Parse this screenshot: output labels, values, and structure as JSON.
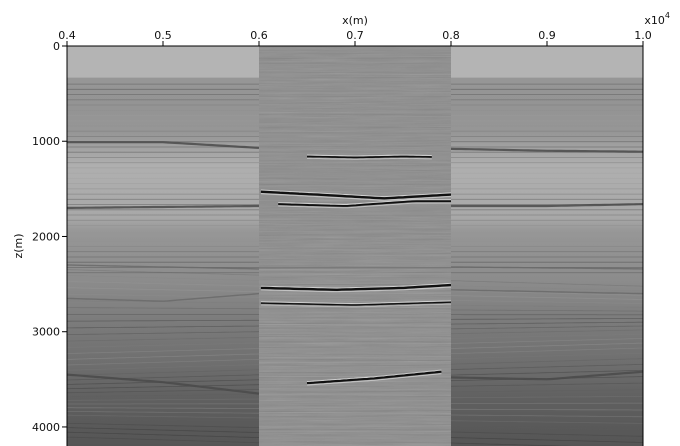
{
  "chart_data": {
    "type": "heatmap",
    "title": "",
    "xlabel": "x(m)",
    "ylabel": "z(m)",
    "x_multiplier": "x10",
    "x_multiplier_exp": "4",
    "xlim": [
      0.4,
      1.0
    ],
    "ylim": [
      0,
      4200
    ],
    "y_direction": "down",
    "x_ticks": [
      {
        "value": 0.4,
        "label": "0.4"
      },
      {
        "value": 0.5,
        "label": "0.5"
      },
      {
        "value": 0.6,
        "label": "0.6"
      },
      {
        "value": 0.7,
        "label": "0.7"
      },
      {
        "value": 0.8,
        "label": "0.8"
      },
      {
        "value": 0.9,
        "label": "0.9"
      },
      {
        "value": 1.0,
        "label": "1.0"
      }
    ],
    "y_ticks": [
      {
        "value": 0,
        "label": "0"
      },
      {
        "value": 1000,
        "label": "1000"
      },
      {
        "value": 2000,
        "label": "2000"
      },
      {
        "value": 3000,
        "label": "3000"
      },
      {
        "value": 4000,
        "label": "4000"
      }
    ],
    "colormap": "grayscale",
    "panels": [
      {
        "x_range": [
          0.4,
          0.6
        ],
        "content": "velocity-model"
      },
      {
        "x_range": [
          0.6,
          0.8
        ],
        "content": "migrated-image"
      },
      {
        "x_range": [
          0.8,
          1.0
        ],
        "content": "velocity-model"
      }
    ],
    "water_depth": 330,
    "reflectors": [
      {
        "depths": [
          1010,
          1010,
          1070,
          1110,
          1080,
          1100,
          1110
        ],
        "contrast": "dark"
      },
      {
        "depths": [
          1700,
          1690,
          1680,
          1690,
          1680,
          1680,
          1660
        ],
        "contrast": "dark"
      },
      {
        "depths": [
          2300,
          2320,
          2340,
          2330,
          2320,
          2330,
          2340
        ],
        "contrast": "medium"
      },
      {
        "depths": [
          2650,
          2680,
          2600,
          2550,
          2560,
          2580,
          2600
        ],
        "contrast": "medium"
      },
      {
        "depths": [
          3450,
          3530,
          3650,
          3600,
          3480,
          3500,
          3420
        ],
        "contrast": "dark"
      }
    ],
    "image_events": [
      {
        "x": [
          0.602,
          0.66,
          0.73,
          0.8
        ],
        "z": [
          1530,
          1560,
          1600,
          1560
        ],
        "strength": 1.0
      },
      {
        "x": [
          0.62,
          0.69,
          0.76,
          0.8
        ],
        "z": [
          1660,
          1680,
          1630,
          1630
        ],
        "strength": 0.8
      },
      {
        "x": [
          0.65,
          0.7,
          0.75,
          0.78
        ],
        "z": [
          1160,
          1170,
          1160,
          1165
        ],
        "strength": 0.7
      },
      {
        "x": [
          0.602,
          0.68,
          0.75,
          0.8
        ],
        "z": [
          2540,
          2560,
          2540,
          2510
        ],
        "strength": 1.0
      },
      {
        "x": [
          0.602,
          0.7,
          0.8
        ],
        "z": [
          2700,
          2720,
          2690
        ],
        "strength": 0.6
      },
      {
        "x": [
          0.65,
          0.72,
          0.79
        ],
        "z": [
          3540,
          3490,
          3420
        ],
        "strength": 0.9
      }
    ]
  }
}
